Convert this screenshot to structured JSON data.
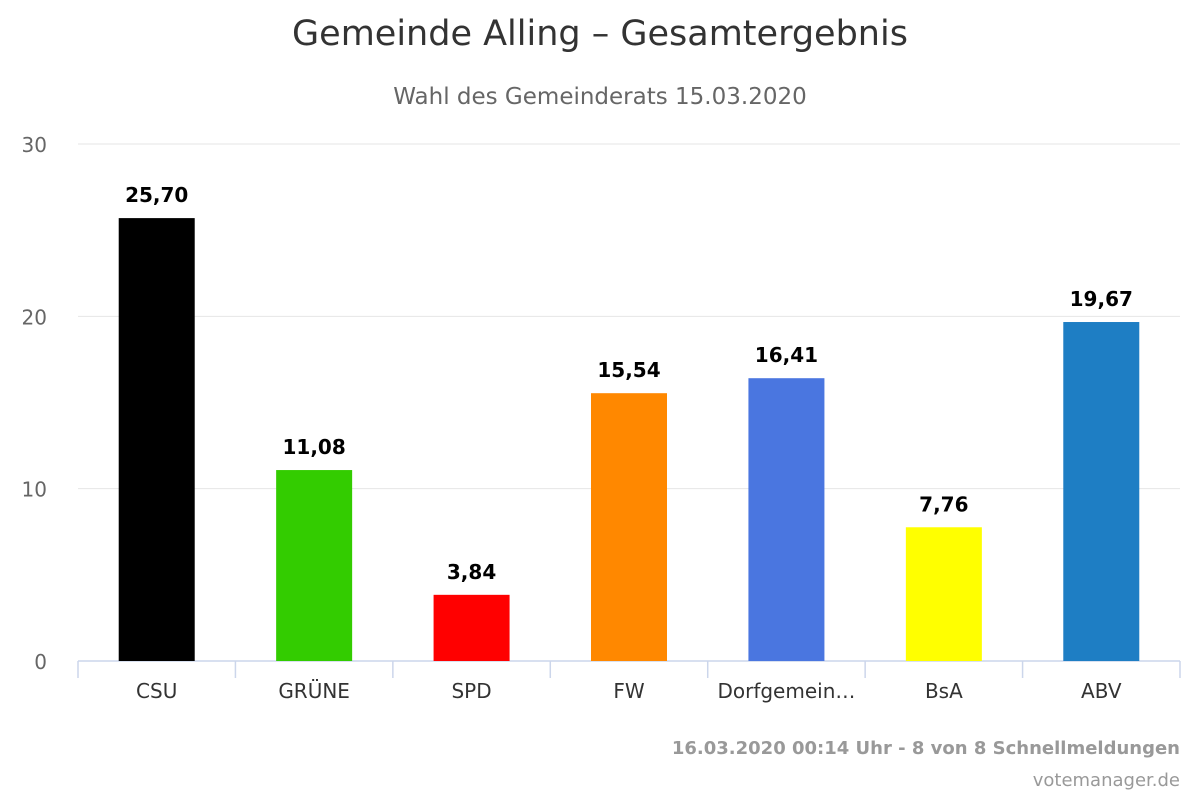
{
  "title": "Gemeinde Alling – Gesamtergebnis",
  "subtitle": "Wahl des Gemeinderats 15.03.2020",
  "footer": {
    "status": "16.03.2020 00:14 Uhr - 8 von 8 Schnellmeldungen",
    "source": "votemanager.de"
  },
  "chart_data": {
    "type": "bar",
    "title": "Gemeinde Alling – Gesamtergebnis",
    "subtitle": "Wahl des Gemeinderats 15.03.2020",
    "xlabel": "",
    "ylabel": "",
    "ylim": [
      0,
      30
    ],
    "yticks": [
      0,
      10,
      20,
      30
    ],
    "grid": true,
    "categories": [
      "CSU",
      "GRÜNE",
      "SPD",
      "FW",
      "Dorfgemein…",
      "BsA",
      "ABV"
    ],
    "values": [
      25.7,
      11.08,
      3.84,
      15.54,
      16.41,
      7.76,
      19.67
    ],
    "value_labels": [
      "25,70",
      "11,08",
      "3,84",
      "15,54",
      "16,41",
      "7,76",
      "19,67"
    ],
    "colors": [
      "#000000",
      "#33cc00",
      "#ff0000",
      "#ff8800",
      "#4a76e0",
      "#ffff00",
      "#1e7ec4"
    ]
  }
}
